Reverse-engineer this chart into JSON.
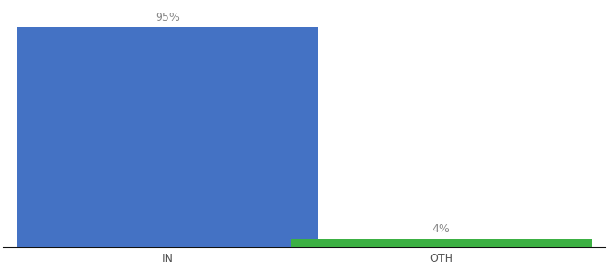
{
  "categories": [
    "IN",
    "OTH"
  ],
  "values": [
    95,
    4
  ],
  "bar_colors": [
    "#4472c4",
    "#3cb043"
  ],
  "labels": [
    "95%",
    "4%"
  ],
  "background_color": "#ffffff",
  "ylim": [
    0,
    105
  ],
  "bar_width": 0.55,
  "label_fontsize": 9,
  "tick_fontsize": 9,
  "x_positions": [
    0.25,
    0.75
  ]
}
